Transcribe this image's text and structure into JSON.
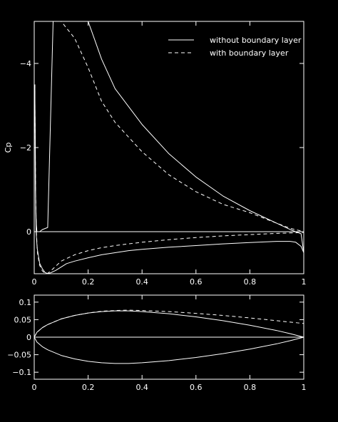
{
  "chart_data": [
    {
      "type": "line",
      "ylabel": "Cp",
      "y_axis_inverted": true,
      "xlim": [
        0,
        1
      ],
      "ylim": [
        1.0,
        -5.0
      ],
      "x_ticks": [
        "0",
        "0.2",
        "0.4",
        "0.6",
        "0.8",
        "1"
      ],
      "y_ticks": [
        {
          "value": -4,
          "label": "−4"
        },
        {
          "value": -2,
          "label": "−2"
        },
        {
          "value": 0,
          "label": "0"
        }
      ],
      "reference_line_y": 0,
      "legend": {
        "placement": "top-right"
      },
      "series": [
        {
          "name": "without boundary layer",
          "style": "solid",
          "color": "#ffffff",
          "x": [
            0.002,
            0.004,
            0.007,
            0.011,
            0.02,
            0.03,
            0.04,
            0.05,
            0.06,
            0.08,
            0.1,
            0.12,
            0.15,
            0.2,
            0.25,
            0.3,
            0.35,
            0.4,
            0.5,
            0.6,
            0.7,
            0.8,
            0.9,
            0.95,
            0.97,
            0.99,
            1.0
          ],
          "y": [
            -3.5,
            -1.2,
            0.0,
            0.4,
            0.75,
            0.88,
            0.97,
            1.0,
            0.98,
            0.92,
            0.84,
            0.76,
            0.7,
            0.62,
            0.55,
            0.5,
            0.45,
            0.42,
            0.37,
            0.33,
            0.29,
            0.26,
            0.23,
            0.23,
            0.25,
            0.35,
            0.5
          ],
          "x2": [
            0.002,
            0.004,
            0.005,
            0.006,
            0.008,
            0.01,
            0.02,
            0.03,
            0.05,
            0.07,
            0.1,
            0.15,
            0.2,
            0.25,
            0.3,
            0.4,
            0.5,
            0.6,
            0.7,
            0.8,
            0.9,
            0.95,
            0.99,
            1.0
          ],
          "y2": [
            -3.5,
            -2.2,
            -1.0,
            -0.5,
            -0.15,
            0.0,
            0.0,
            -0.05,
            -0.1,
            -5.0,
            -5.0,
            -5.0,
            -5.0,
            -4.1,
            -3.4,
            -2.55,
            -1.85,
            -1.3,
            -0.85,
            -0.5,
            -0.2,
            -0.05,
            0.05,
            0.5
          ]
        },
        {
          "name": "with boundary layer",
          "style": "dashed",
          "color": "#ffffff",
          "x": [
            0.002,
            0.005,
            0.008,
            0.012,
            0.02,
            0.03,
            0.04,
            0.05,
            0.06,
            0.08,
            0.1,
            0.15,
            0.2,
            0.25,
            0.3,
            0.4,
            0.5,
            0.6,
            0.7,
            0.8,
            0.9,
            0.95,
            1.0
          ],
          "y": [
            -3.5,
            -1.0,
            0.0,
            0.5,
            0.8,
            0.93,
            0.99,
            0.99,
            0.94,
            0.82,
            0.7,
            0.55,
            0.45,
            0.38,
            0.33,
            0.25,
            0.19,
            0.14,
            0.1,
            0.07,
            0.04,
            0.03,
            0.02
          ],
          "x2": [
            0.065,
            0.08,
            0.1,
            0.15,
            0.2,
            0.25,
            0.3,
            0.35,
            0.4,
            0.5,
            0.6,
            0.7,
            0.8,
            0.9,
            0.95,
            1.0
          ],
          "y2": [
            -5.0,
            -5.0,
            -5.0,
            -4.6,
            -3.9,
            -3.1,
            -2.6,
            -2.25,
            -1.9,
            -1.35,
            -0.95,
            -0.65,
            -0.45,
            -0.2,
            -0.08,
            0.0
          ]
        }
      ]
    },
    {
      "type": "line",
      "xlim": [
        0,
        1
      ],
      "ylim": [
        -0.12,
        0.12
      ],
      "x_ticks": [
        "0",
        "0.2",
        "0.4",
        "0.6",
        "0.8",
        "1"
      ],
      "y_ticks": [
        {
          "value": 0.1,
          "label": "0.1"
        },
        {
          "value": 0.05,
          "label": "0.05"
        },
        {
          "value": 0,
          "label": "0"
        },
        {
          "value": -0.05,
          "label": "−0.05"
        },
        {
          "value": -0.1,
          "label": "−0.1"
        }
      ],
      "reference_line_y": 0,
      "series": [
        {
          "name": "without boundary layer",
          "style": "solid",
          "color": "#ffffff",
          "x": [
            0.0,
            0.01,
            0.03,
            0.05,
            0.1,
            0.15,
            0.2,
            0.25,
            0.3,
            0.35,
            0.4,
            0.5,
            0.6,
            0.7,
            0.8,
            0.9,
            0.95,
            1.0
          ],
          "y": [
            0.0,
            0.014,
            0.027,
            0.036,
            0.052,
            0.062,
            0.069,
            0.073,
            0.075,
            0.075,
            0.073,
            0.067,
            0.058,
            0.047,
            0.034,
            0.019,
            0.01,
            0.0
          ],
          "x2": [
            0.0,
            0.01,
            0.03,
            0.05,
            0.1,
            0.15,
            0.2,
            0.25,
            0.3,
            0.35,
            0.4,
            0.5,
            0.6,
            0.7,
            0.8,
            0.9,
            0.95,
            1.0
          ],
          "y2": [
            0.0,
            -0.014,
            -0.027,
            -0.036,
            -0.052,
            -0.062,
            -0.069,
            -0.073,
            -0.075,
            -0.075,
            -0.073,
            -0.067,
            -0.058,
            -0.047,
            -0.034,
            -0.019,
            -0.01,
            0.0
          ]
        },
        {
          "name": "with boundary layer",
          "style": "dashed",
          "color": "#ffffff",
          "x": [
            0.0,
            0.01,
            0.03,
            0.05,
            0.1,
            0.15,
            0.2,
            0.25,
            0.3,
            0.35,
            0.4,
            0.5,
            0.6,
            0.7,
            0.8,
            0.9,
            0.95,
            1.0
          ],
          "y": [
            0.0,
            0.014,
            0.027,
            0.036,
            0.052,
            0.062,
            0.069,
            0.074,
            0.076,
            0.077,
            0.076,
            0.073,
            0.068,
            0.062,
            0.055,
            0.047,
            0.043,
            0.039
          ]
        }
      ]
    }
  ]
}
